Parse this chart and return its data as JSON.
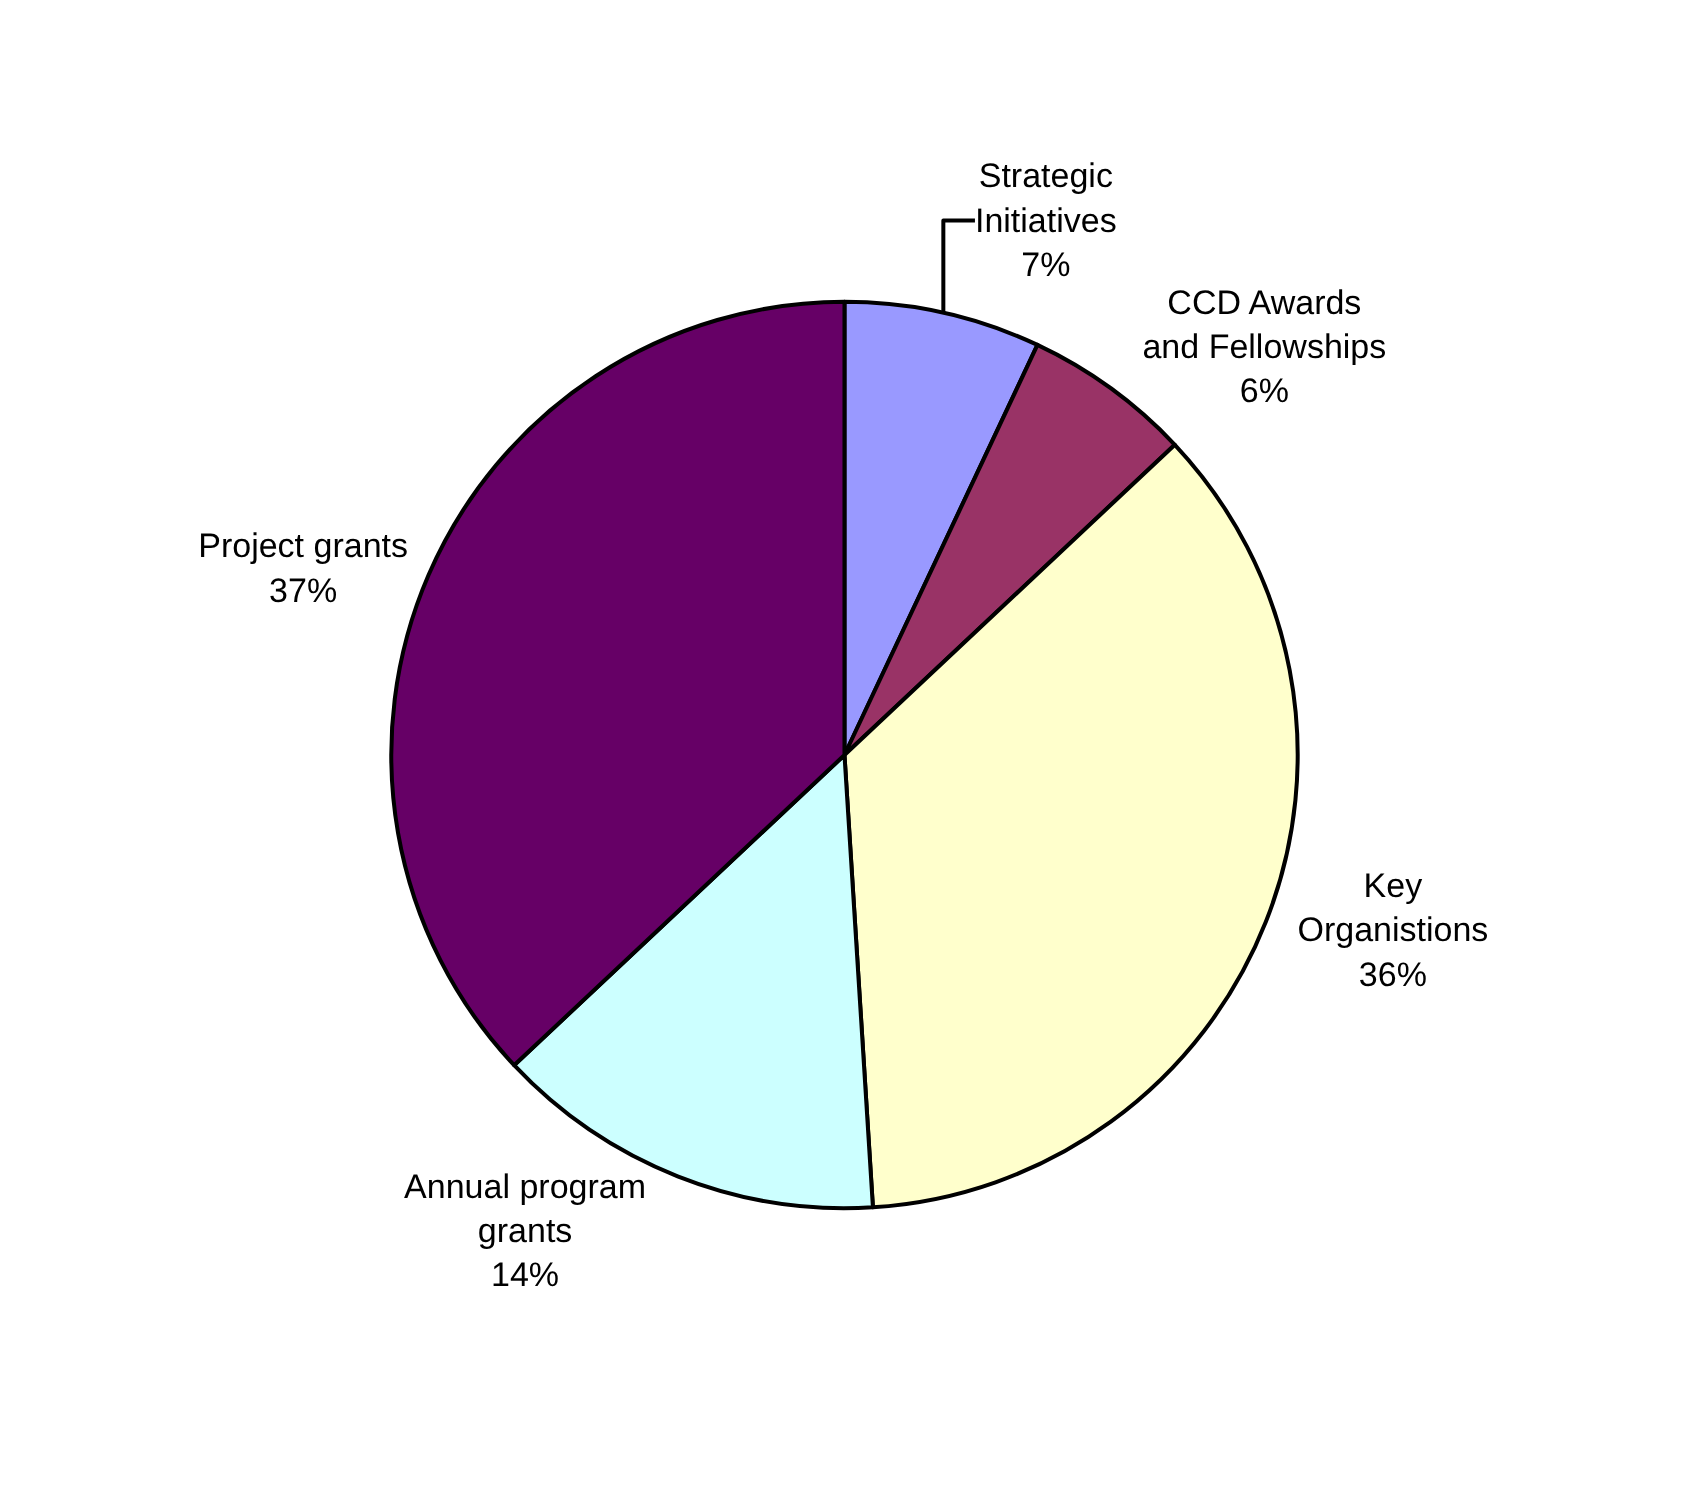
{
  "chart_data": {
    "type": "pie",
    "categories": [
      "Strategic\nInitiatives",
      "CCD Awards\nand Fellowships",
      "Key\nOrganistions",
      "Annual program\ngrants",
      "Project grants"
    ],
    "values": [
      7,
      6,
      36,
      14,
      37
    ],
    "value_labels": [
      "7%",
      "6%",
      "36%",
      "14%",
      "37%"
    ],
    "colors": [
      "#9999ff",
      "#993366",
      "#ffffcc",
      "#ccffff",
      "#660066"
    ],
    "legend": false
  }
}
